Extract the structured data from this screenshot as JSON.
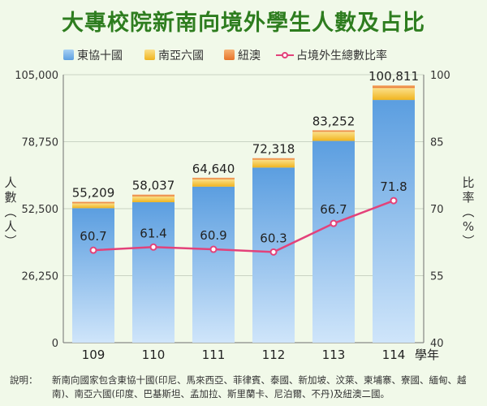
{
  "title": "大專校院新南向境外學生人數及占比",
  "legend": [
    {
      "label": "東協十國",
      "color": "#7fb8ea"
    },
    {
      "label": "南亞六國",
      "color": "#f5c43c"
    },
    {
      "label": "紐澳",
      "color": "#ef8c3a"
    },
    {
      "label": "占境外生總數比率",
      "color": "#e3427a"
    }
  ],
  "axis": {
    "y_left_title": "人數（人）",
    "y_right_title": "比率（%）",
    "x_unit": "學年"
  },
  "chart_data": {
    "type": "bar",
    "categories": [
      "109",
      "110",
      "111",
      "112",
      "113",
      "114"
    ],
    "totals": [
      55209,
      58037,
      64640,
      72318,
      83252,
      100811
    ],
    "total_labels": [
      "55,209",
      "58,037",
      "64,640",
      "72,318",
      "83,252",
      "100,811"
    ],
    "series": [
      {
        "name": "東協十國",
        "values": [
          52709,
          55037,
          61140,
          68618,
          79052,
          95111
        ]
      },
      {
        "name": "南亞六國",
        "values": [
          1900,
          2300,
          2900,
          3100,
          3600,
          4700
        ]
      },
      {
        "name": "紐澳",
        "values": [
          600,
          700,
          600,
          600,
          600,
          1000
        ]
      }
    ],
    "line": {
      "name": "占境外生總數比率",
      "values": [
        60.7,
        61.4,
        60.9,
        60.3,
        66.7,
        71.8
      ],
      "labels": [
        "60.7",
        "61.4",
        "60.9",
        "60.3",
        "66.7",
        "71.8"
      ]
    },
    "ylim": [
      0,
      105000
    ],
    "yticks": [
      0,
      26250,
      52500,
      78750,
      105000
    ],
    "ytick_labels": [
      "0",
      "26,250",
      "52,500",
      "78,750",
      "105,000"
    ],
    "y2lim": [
      40,
      100
    ],
    "y2ticks": [
      40,
      55,
      70,
      85,
      100
    ],
    "y2tick_labels": [
      "40",
      "55",
      "70",
      "85",
      "100"
    ],
    "grid": true
  },
  "note": {
    "label": "說明：",
    "text": "新南向國家包含東協十國(印尼、馬來西亞、菲律賓、泰國、新加坡、汶萊、柬埔寨、寮國、緬甸、越南)、南亞六國(印度、巴基斯坦、孟加拉、斯里蘭卡、尼泊爾、不丹)及紐澳二國。"
  }
}
